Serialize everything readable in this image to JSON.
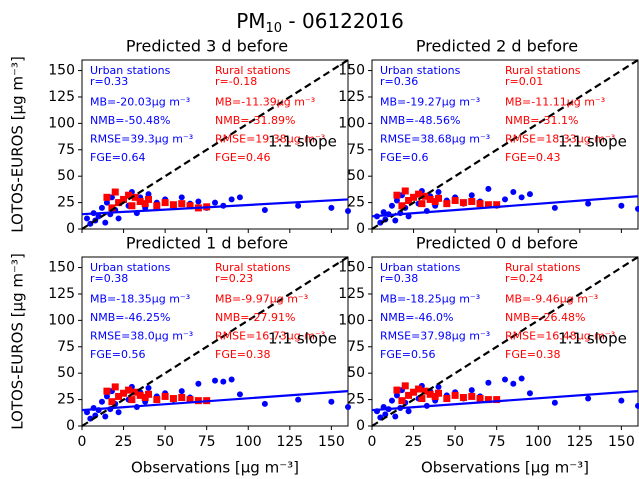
{
  "title": "PM",
  "title_subscript": "10",
  "title_suffix": " - 06122016",
  "chart_data": [
    {
      "type": "scatter",
      "title": "Predicted 3 d before",
      "ylabel": "LOTOS-EUROS [μg m⁻³]",
      "show_xticklabels": false,
      "xlim": [
        0,
        160
      ],
      "ylim": [
        0,
        160
      ],
      "xticks": [
        0,
        25,
        50,
        75,
        100,
        125,
        150
      ],
      "yticks": [
        0,
        25,
        50,
        75,
        100,
        125,
        150
      ],
      "annotation": "1:1 slope",
      "urban_stats": {
        "title": "Urban stations",
        "color": "#0000ff",
        "lines": [
          "r=0.33",
          "MB=-20.03μg m⁻³",
          "NMB=-50.48%",
          "RMSE=39.3μg m⁻³",
          "FGE=0.64"
        ]
      },
      "rural_stats": {
        "title": "Rural stations",
        "color": "#ff0000",
        "lines": [
          "r=-0.18",
          "MB=-11.39μg m⁻³",
          "NMB=-31.89%",
          "RMSE=19.38μg m⁻³",
          "FGE=0.46"
        ]
      },
      "series": [
        {
          "color": "#0000ff",
          "marker": "circle",
          "x": [
            3,
            5,
            7,
            8,
            10,
            12,
            14,
            15,
            17,
            18,
            20,
            22,
            25,
            28,
            30,
            33,
            35,
            38,
            40,
            45,
            50,
            55,
            60,
            65,
            70,
            75,
            80,
            85,
            90,
            95,
            110,
            130,
            150,
            160
          ],
          "values": [
            10,
            5,
            15,
            8,
            12,
            20,
            6,
            25,
            14,
            30,
            18,
            10,
            28,
            22,
            35,
            15,
            30,
            20,
            33,
            25,
            28,
            22,
            30,
            24,
            26,
            20,
            25,
            22,
            28,
            30,
            18,
            22,
            20,
            17
          ]
        },
        {
          "color": "#ff0000",
          "marker": "square",
          "x": [
            15,
            18,
            20,
            22,
            25,
            28,
            30,
            32,
            35,
            38,
            40,
            45,
            50,
            55,
            60,
            65,
            70,
            75
          ],
          "values": [
            30,
            20,
            35,
            25,
            28,
            32,
            22,
            30,
            26,
            24,
            28,
            22,
            25,
            23,
            24,
            22,
            20,
            21
          ]
        }
      ],
      "lines": [
        {
          "color": "#000000",
          "dash": true,
          "x": [
            0,
            160
          ],
          "values": [
            0,
            160
          ]
        },
        {
          "color": "#0000ff",
          "dash": false,
          "x": [
            0,
            160
          ],
          "values": [
            14,
            28
          ]
        }
      ]
    },
    {
      "type": "scatter",
      "title": "Predicted 2 d before",
      "show_xticklabels": false,
      "xlim": [
        0,
        160
      ],
      "ylim": [
        0,
        160
      ],
      "xticks": [
        0,
        25,
        50,
        75,
        100,
        125,
        150
      ],
      "yticks": [
        0,
        25,
        50,
        75,
        100,
        125,
        150
      ],
      "annotation": "1:1 slope",
      "urban_stats": {
        "title": "Urban stations",
        "color": "#0000ff",
        "lines": [
          "r=0.36",
          "MB=-19.27μg m⁻³",
          "NMB=-48.56%",
          "RMSE=38.68μg m⁻³",
          "FGE=0.6"
        ]
      },
      "rural_stats": {
        "title": "Rural stations",
        "color": "#ff0000",
        "lines": [
          "r=0.01",
          "MB=-11.11μg m⁻³",
          "NMB=-31.1%",
          "RMSE=18.33μg m⁻³",
          "FGE=0.43"
        ]
      },
      "series": [
        {
          "color": "#0000ff",
          "marker": "circle",
          "x": [
            3,
            5,
            7,
            8,
            10,
            12,
            14,
            15,
            17,
            18,
            20,
            22,
            25,
            28,
            30,
            33,
            35,
            38,
            40,
            45,
            50,
            55,
            60,
            65,
            70,
            75,
            80,
            85,
            90,
            95,
            110,
            130,
            150,
            160
          ],
          "values": [
            12,
            6,
            16,
            9,
            14,
            22,
            8,
            27,
            15,
            32,
            20,
            12,
            30,
            24,
            36,
            17,
            31,
            22,
            35,
            27,
            30,
            24,
            32,
            26,
            38,
            22,
            28,
            35,
            30,
            33,
            20,
            24,
            22,
            19
          ]
        },
        {
          "color": "#ff0000",
          "marker": "square",
          "x": [
            15,
            18,
            20,
            22,
            25,
            28,
            30,
            32,
            35,
            38,
            40,
            45,
            50,
            55,
            60,
            65,
            70,
            75
          ],
          "values": [
            32,
            22,
            36,
            27,
            30,
            33,
            24,
            31,
            28,
            26,
            29,
            24,
            27,
            25,
            26,
            24,
            23,
            23
          ]
        }
      ],
      "lines": [
        {
          "color": "#000000",
          "dash": true,
          "x": [
            0,
            160
          ],
          "values": [
            0,
            160
          ]
        },
        {
          "color": "#0000ff",
          "dash": false,
          "x": [
            0,
            160
          ],
          "values": [
            12,
            31
          ]
        }
      ]
    },
    {
      "type": "scatter",
      "title": "Predicted 1 d before",
      "ylabel": "LOTOS-EUROS [μg m⁻³]",
      "xlabel": "Observations [μg m⁻³]",
      "show_xticklabels": true,
      "xlim": [
        0,
        160
      ],
      "ylim": [
        0,
        160
      ],
      "xticks": [
        0,
        25,
        50,
        75,
        100,
        125,
        150
      ],
      "yticks": [
        0,
        25,
        50,
        75,
        100,
        125,
        150
      ],
      "annotation": "1:1 slope",
      "urban_stats": {
        "title": "Urban stations",
        "color": "#0000ff",
        "lines": [
          "r=0.38",
          "MB=-18.35μg m⁻³",
          "NMB=-46.25%",
          "RMSE=38.0μg m⁻³",
          "FGE=0.56"
        ]
      },
      "rural_stats": {
        "title": "Rural stations",
        "color": "#ff0000",
        "lines": [
          "r=0.23",
          "MB=-9.97μg m⁻³",
          "NMB=-27.91%",
          "RMSE=16.73μg m⁻³",
          "FGE=0.38"
        ]
      },
      "series": [
        {
          "color": "#0000ff",
          "marker": "circle",
          "x": [
            3,
            5,
            7,
            8,
            10,
            12,
            14,
            15,
            17,
            18,
            20,
            22,
            25,
            28,
            30,
            33,
            35,
            38,
            40,
            45,
            50,
            55,
            60,
            65,
            70,
            75,
            80,
            85,
            90,
            95,
            110,
            130,
            150,
            160
          ],
          "values": [
            13,
            7,
            17,
            10,
            15,
            23,
            9,
            28,
            16,
            33,
            21,
            13,
            31,
            25,
            37,
            18,
            32,
            23,
            36,
            28,
            31,
            25,
            33,
            27,
            40,
            24,
            43,
            42,
            44,
            30,
            21,
            25,
            23,
            18
          ]
        },
        {
          "color": "#ff0000",
          "marker": "square",
          "x": [
            15,
            18,
            20,
            22,
            25,
            28,
            30,
            32,
            35,
            38,
            40,
            45,
            50,
            55,
            60,
            65,
            70,
            75
          ],
          "values": [
            33,
            23,
            37,
            28,
            31,
            34,
            25,
            32,
            29,
            27,
            30,
            25,
            28,
            26,
            27,
            25,
            24,
            24
          ]
        }
      ],
      "lines": [
        {
          "color": "#000000",
          "dash": true,
          "x": [
            0,
            160
          ],
          "values": [
            0,
            160
          ]
        },
        {
          "color": "#0000ff",
          "dash": false,
          "x": [
            0,
            160
          ],
          "values": [
            15,
            33
          ]
        }
      ]
    },
    {
      "type": "scatter",
      "title": "Predicted 0 d before",
      "xlabel": "Observations [μg m⁻³]",
      "show_xticklabels": true,
      "xlim": [
        0,
        160
      ],
      "ylim": [
        0,
        160
      ],
      "xticks": [
        0,
        25,
        50,
        75,
        100,
        125,
        150
      ],
      "yticks": [
        0,
        25,
        50,
        75,
        100,
        125,
        150
      ],
      "annotation": "1:1 slope",
      "urban_stats": {
        "title": "Urban stations",
        "color": "#0000ff",
        "lines": [
          "r=0.38",
          "MB=-18.25μg m⁻³",
          "NMB=-46.0%",
          "RMSE=37.98μg m⁻³",
          "FGE=0.56"
        ]
      },
      "rural_stats": {
        "title": "Rural stations",
        "color": "#ff0000",
        "lines": [
          "r=0.24",
          "MB=-9.46μg m⁻³",
          "NMB=-26.48%",
          "RMSE=16.48μg m⁻³",
          "FGE=0.38"
        ]
      },
      "series": [
        {
          "color": "#0000ff",
          "marker": "circle",
          "x": [
            3,
            5,
            7,
            8,
            10,
            12,
            14,
            15,
            17,
            18,
            20,
            22,
            25,
            28,
            30,
            33,
            35,
            38,
            40,
            45,
            50,
            55,
            60,
            65,
            70,
            75,
            80,
            85,
            90,
            95,
            110,
            130,
            150,
            160
          ],
          "values": [
            14,
            8,
            18,
            11,
            16,
            24,
            9,
            29,
            17,
            34,
            22,
            14,
            32,
            26,
            38,
            19,
            33,
            24,
            37,
            29,
            32,
            26,
            34,
            28,
            41,
            25,
            44,
            40,
            45,
            31,
            22,
            26,
            24,
            19
          ]
        },
        {
          "color": "#ff0000",
          "marker": "square",
          "x": [
            15,
            18,
            20,
            22,
            25,
            28,
            30,
            32,
            35,
            38,
            40,
            45,
            50,
            55,
            60,
            65,
            70,
            75
          ],
          "values": [
            34,
            24,
            38,
            29,
            32,
            35,
            26,
            33,
            30,
            28,
            31,
            26,
            29,
            27,
            28,
            26,
            25,
            25
          ]
        }
      ],
      "lines": [
        {
          "color": "#000000",
          "dash": true,
          "x": [
            0,
            160
          ],
          "values": [
            0,
            160
          ]
        },
        {
          "color": "#0000ff",
          "dash": false,
          "x": [
            0,
            160
          ],
          "values": [
            15,
            33
          ]
        }
      ]
    }
  ]
}
